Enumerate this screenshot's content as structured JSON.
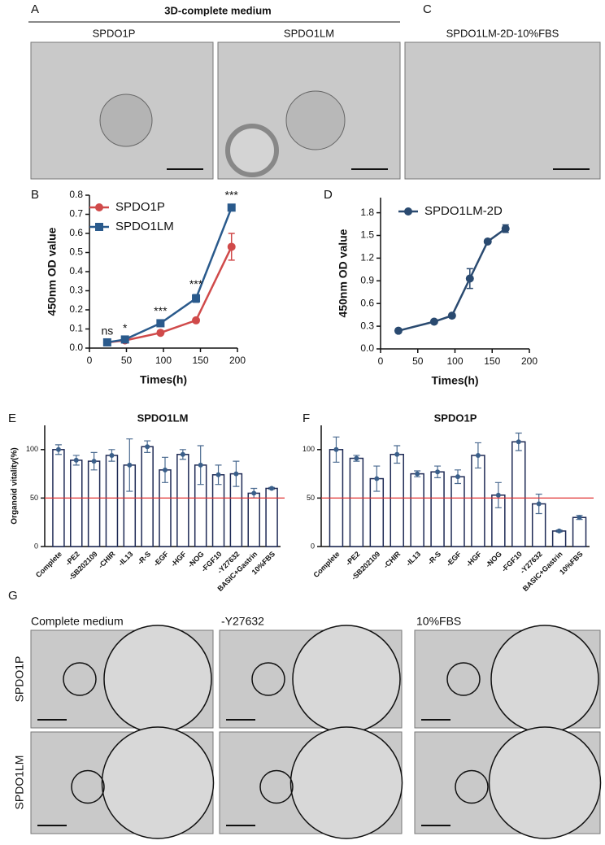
{
  "panels": {
    "a": {
      "letter": "A",
      "heading": "3D-complete medium",
      "left": "SPDO1P",
      "right": "SPDO1LM"
    },
    "c": {
      "letter": "C",
      "title": "SPDO1LM-2D-10%FBS"
    },
    "g": {
      "letter": "G",
      "columns": [
        "Complete medium",
        "-Y27632",
        "10%FBS"
      ],
      "rows": [
        "SPDO1P",
        "SPDO1LM"
      ]
    }
  },
  "chart_data": [
    {
      "type": "line",
      "label": "B",
      "y_label": "450nm OD value",
      "x_label": "Times(h)",
      "x": [
        24,
        48,
        96,
        144,
        192
      ],
      "xlim": [
        0,
        200
      ],
      "xticks": [
        0,
        50,
        100,
        150,
        200
      ],
      "ylim": [
        0,
        0.8
      ],
      "yticks": [
        {
          "value": 0,
          "label": "0.0"
        },
        0.1,
        0.2,
        0.3,
        0.4,
        0.5,
        0.6,
        0.7,
        {
          "value": 0.8,
          "label": "0.8"
        }
      ],
      "series": [
        {
          "name": "SPDO1P",
          "color": "#d04a4a",
          "marker": "circle",
          "values": [
            0.03,
            0.04,
            0.08,
            0.145,
            0.53
          ],
          "errors": [
            0.005,
            0.005,
            0.005,
            0.008,
            0.07
          ]
        },
        {
          "name": "SPDO1LM",
          "color": "#2a5a8c",
          "marker": "square",
          "values": [
            0.03,
            0.045,
            0.13,
            0.26,
            0.735
          ],
          "errors": [
            0.005,
            0.005,
            0.01,
            0.02,
            0.01
          ]
        }
      ],
      "annotations": [
        "ns",
        "*",
        "***",
        "***",
        "***"
      ]
    },
    {
      "type": "line",
      "label": "D",
      "y_label": "450nm OD value",
      "x_label": "Times(h)",
      "x": [
        24,
        72,
        96,
        120,
        144,
        168
      ],
      "xlim": [
        0,
        200
      ],
      "xticks": [
        0,
        50,
        100,
        150,
        200
      ],
      "ylim": [
        0,
        2.0
      ],
      "yticks": [
        {
          "value": 0,
          "label": "0.0"
        },
        0.3,
        0.6,
        0.9,
        1.2,
        1.5,
        1.8
      ],
      "series": [
        {
          "name": "SPDO1LM-2D",
          "color": "#2a4a70",
          "marker": "circle",
          "values": [
            0.24,
            0.36,
            0.44,
            0.93,
            1.42,
            1.59
          ],
          "errors": [
            0.01,
            0.02,
            0.02,
            0.13,
            0.02,
            0.05
          ]
        }
      ]
    },
    {
      "type": "bar",
      "label": "E",
      "title": "SPDO1LM",
      "y_label": "Organoid vitality(%)",
      "categories": [
        "Complete",
        "-PE2",
        "-SB202109",
        "-CHIR",
        "-IL13",
        "-R-S",
        "-EGF",
        "-HGF",
        "-NOG",
        "-FGF10",
        "-Y27632",
        "BASIC+Gastrin",
        "10%FBS"
      ],
      "values": [
        100,
        89,
        88,
        94,
        84,
        103,
        79,
        95,
        84,
        74,
        75,
        55,
        60
      ],
      "errors": [
        5,
        5,
        9,
        6,
        27,
        6,
        13,
        5,
        20,
        10,
        13,
        5,
        1
      ],
      "color": "#1e2a55",
      "ylim": [
        0,
        125
      ],
      "yticks": [
        0,
        50,
        100
      ],
      "reference_line": 50,
      "reference_color": "#e03030"
    },
    {
      "type": "bar",
      "label": "F",
      "title": "SPDO1P",
      "categories": [
        "Complete",
        "-PE2",
        "-SB202109",
        "-CHIR",
        "-IL13",
        "-R-S",
        "-EGF",
        "-HGF",
        "-NOG",
        "-FGF10",
        "-Y27632",
        "BASIC+Gastrin",
        "10%FBS"
      ],
      "values": [
        100,
        91,
        70,
        95,
        75,
        77,
        72,
        94,
        53,
        108,
        44,
        16,
        30
      ],
      "errors": [
        13,
        3,
        13,
        9,
        3,
        6,
        7,
        13,
        13,
        9,
        10,
        1,
        2
      ],
      "color": "#1e2a55",
      "ylim": [
        0,
        125
      ],
      "yticks": [
        0,
        50,
        100
      ],
      "reference_line": 50,
      "reference_color": "#e03030"
    }
  ]
}
